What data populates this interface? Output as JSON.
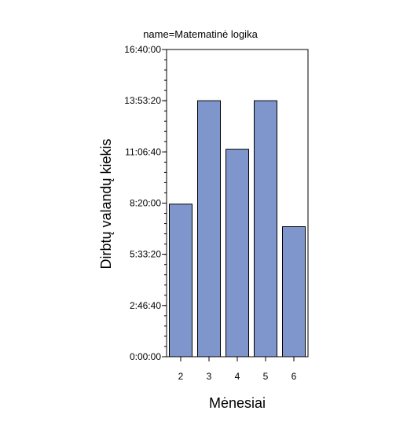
{
  "chart_data": {
    "type": "bar",
    "title": "name=Matematinė logika",
    "xlabel": "Mėnesiai",
    "ylabel": "Dirbtų valandų kiekis",
    "categories": [
      "2",
      "3",
      "4",
      "5",
      "6"
    ],
    "values": [
      29800,
      50000,
      40500,
      50000,
      25400
    ],
    "value_unit": "seconds",
    "ylim": [
      0,
      60000
    ],
    "yticks": [
      0,
      10000,
      20000,
      30000,
      40000,
      50000,
      60000
    ],
    "ytick_labels": [
      "0:00:00",
      "2:46:40",
      "5:33:20",
      "8:20:00",
      "11:06:40",
      "13:53:20",
      "16:40:00"
    ],
    "grid": false,
    "legend": "none",
    "bar_color": "#7f96cc",
    "bar_outline_color": "#000000"
  }
}
